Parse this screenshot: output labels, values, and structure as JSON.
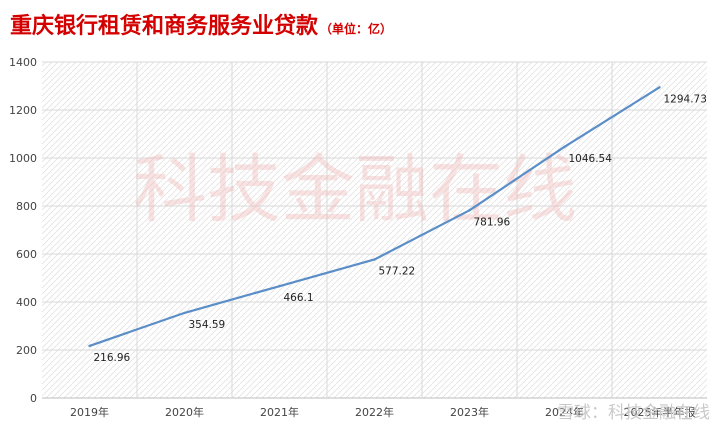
{
  "chart_data": {
    "type": "line",
    "title": "重庆银行租赁和商务服务业贷款",
    "title_unit": "（单位：亿）",
    "categories": [
      "2019年",
      "2020年",
      "2021年",
      "2022年",
      "2023年",
      "2024年",
      "2025年半年报"
    ],
    "series": [
      {
        "values": [
          216.96,
          354.59,
          466.1,
          577.22,
          781.96,
          1046.54,
          1294.73
        ],
        "color": "#5b8ec6"
      }
    ],
    "data_labels": [
      "216.96",
      "354.59",
      "466.1",
      "577.22",
      "781.96",
      "1046.54",
      "1294.73"
    ],
    "y_ticks": [
      "0",
      "200",
      "400",
      "600",
      "800",
      "1000",
      "1200",
      "1400"
    ],
    "ylim": [
      0,
      1400
    ],
    "grid": true,
    "legend": "none"
  },
  "watermarks": {
    "center": "科技金融在线",
    "corner": "雪球：科技金融在线"
  }
}
